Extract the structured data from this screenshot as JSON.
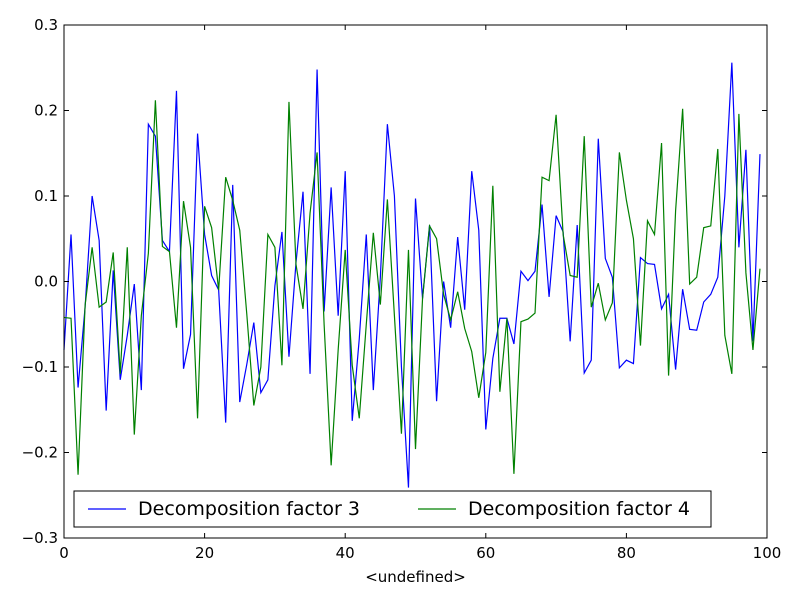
{
  "chart_data": {
    "type": "line",
    "title": "",
    "xlabel": "<undefined>",
    "ylabel": "",
    "xlim": [
      0,
      100
    ],
    "ylim": [
      -0.3,
      0.3
    ],
    "xticks": [
      0,
      20,
      40,
      60,
      80,
      100
    ],
    "yticks": [
      -0.3,
      -0.2,
      -0.1,
      0.0,
      0.1,
      0.2,
      0.3
    ],
    "xtick_labels": [
      "0",
      "20",
      "40",
      "60",
      "80",
      "100"
    ],
    "ytick_labels": [
      "−0.3",
      "−0.2",
      "−0.1",
      "0.0",
      "0.1",
      "0.2",
      "0.3"
    ],
    "grid": false,
    "legend_placement": "lower-center",
    "series": [
      {
        "name": "Decomposition factor 3",
        "color": "#0000ff",
        "values": [
          -0.08,
          0.055,
          -0.124,
          -0.03,
          0.1,
          0.048,
          -0.151,
          0.013,
          -0.115,
          -0.063,
          -0.003,
          -0.127,
          0.184,
          0.17,
          0.048,
          0.035,
          0.223,
          -0.102,
          -0.062,
          0.173,
          0.055,
          0.007,
          -0.01,
          -0.165,
          0.113,
          -0.141,
          -0.097,
          -0.048,
          -0.13,
          -0.115,
          -0.005,
          0.058,
          -0.088,
          0.022,
          0.105,
          -0.108,
          0.248,
          -0.035,
          0.11,
          -0.04,
          0.129,
          -0.163,
          -0.067,
          0.055,
          -0.127,
          0.005,
          0.184,
          0.1,
          -0.1,
          -0.241,
          0.097,
          -0.02,
          0.066,
          -0.14,
          0.0,
          -0.054,
          0.052,
          -0.033,
          0.129,
          0.06,
          -0.173,
          -0.09,
          -0.043,
          -0.043,
          -0.073,
          0.012,
          0.001,
          0.012,
          0.09,
          -0.018,
          0.077,
          0.058,
          -0.07,
          0.066,
          -0.107,
          -0.092,
          0.167,
          0.027,
          0.005,
          -0.101,
          -0.092,
          -0.096,
          0.028,
          0.021,
          0.02,
          -0.032,
          -0.015,
          -0.103,
          -0.009,
          -0.056,
          -0.057,
          -0.024,
          -0.015,
          0.005,
          0.1,
          0.256,
          0.04,
          0.154,
          -0.07,
          0.149
        ]
      },
      {
        "name": "Decomposition factor 4",
        "color": "#008000",
        "values": [
          -0.042,
          -0.043,
          -0.226,
          -0.028,
          0.04,
          -0.03,
          -0.024,
          0.034,
          -0.108,
          0.04,
          -0.179,
          -0.04,
          0.033,
          0.212,
          0.041,
          0.035,
          -0.054,
          0.094,
          0.04,
          -0.16,
          0.088,
          0.063,
          -0.01,
          0.122,
          0.095,
          0.06,
          -0.038,
          -0.145,
          -0.1,
          0.055,
          0.04,
          -0.098,
          0.21,
          0.02,
          -0.032,
          0.08,
          0.151,
          -0.05,
          -0.215,
          -0.08,
          0.037,
          -0.098,
          -0.16,
          -0.05,
          0.057,
          -0.027,
          0.096,
          -0.04,
          -0.178,
          0.037,
          -0.196,
          -0.02,
          0.065,
          0.05,
          -0.015,
          -0.045,
          -0.012,
          -0.055,
          -0.082,
          -0.136,
          -0.083,
          0.112,
          -0.129,
          -0.043,
          -0.225,
          -0.047,
          -0.044,
          -0.037,
          0.122,
          0.118,
          0.195,
          0.055,
          0.007,
          0.005,
          0.17,
          -0.03,
          -0.002,
          -0.045,
          -0.025,
          0.151,
          0.095,
          0.05,
          -0.075,
          0.071,
          0.055,
          0.162,
          -0.11,
          0.083,
          0.202,
          -0.003,
          0.005,
          0.063,
          0.065,
          0.155,
          -0.063,
          -0.108,
          0.196,
          0.01,
          -0.08,
          0.015
        ]
      }
    ]
  }
}
